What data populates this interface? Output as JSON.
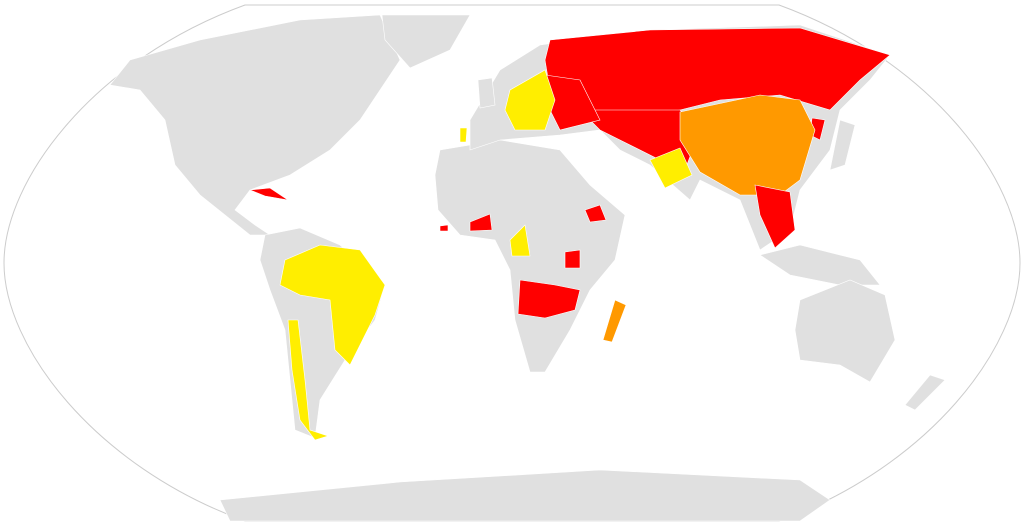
{
  "map": {
    "projection": "robinson",
    "colors": {
      "background": "#ffffff",
      "frame": "#cccccc",
      "land": "#e0e0e0",
      "red": "#ff0000",
      "orange": "#ff9900",
      "yellow": "#ffee00"
    }
  }
}
